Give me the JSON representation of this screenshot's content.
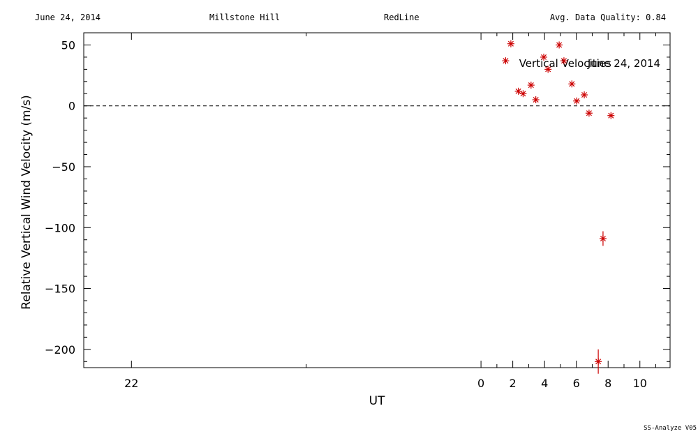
{
  "header": {
    "date": "June 24, 2014",
    "site": "Millstone Hill",
    "instrument": "RedLine",
    "quality": "Avg. Data Quality: 0.84"
  },
  "footer": "SS-Analyze V05",
  "chart_data": {
    "type": "scatter",
    "title": "",
    "xlabel": "UT",
    "ylabel": "Relative Vertical Wind Velocity (m/s)",
    "xlim": [
      -25,
      11.9
    ],
    "ylim": [
      -215,
      60
    ],
    "x_ticks": [
      {
        "value": -22,
        "label": "22"
      },
      {
        "value": 0,
        "label": "0"
      },
      {
        "value": 2,
        "label": "2"
      },
      {
        "value": 4,
        "label": "4"
      },
      {
        "value": 6,
        "label": "6"
      },
      {
        "value": 8,
        "label": "8"
      },
      {
        "value": 10,
        "label": "10"
      }
    ],
    "y_ticks": [
      {
        "value": 50,
        "label": "50"
      },
      {
        "value": 0,
        "label": "0"
      },
      {
        "value": -50,
        "label": "−50"
      },
      {
        "value": -100,
        "label": "−100"
      },
      {
        "value": -150,
        "label": "−150"
      },
      {
        "value": -200,
        "label": "−200"
      }
    ],
    "reference_line": {
      "y": 0,
      "style": "dashed"
    },
    "annotations": [
      {
        "text": "Vertical Velocities",
        "x": 5.3,
        "y": 32
      },
      {
        "text": "June 24, 2014",
        "x": 9.0,
        "y": 32
      }
    ],
    "marker_color": "#cc0000",
    "points": [
      {
        "x": 1.55,
        "y": 37,
        "err": 0
      },
      {
        "x": 1.88,
        "y": 51,
        "err": 0
      },
      {
        "x": 2.35,
        "y": 12,
        "err": 0
      },
      {
        "x": 2.65,
        "y": 10,
        "err": 0
      },
      {
        "x": 3.15,
        "y": 17,
        "err": 0
      },
      {
        "x": 3.45,
        "y": 5,
        "err": 0
      },
      {
        "x": 3.95,
        "y": 40,
        "err": 0
      },
      {
        "x": 4.22,
        "y": 30,
        "err": 0
      },
      {
        "x": 4.92,
        "y": 50,
        "err": 0
      },
      {
        "x": 5.22,
        "y": 37,
        "err": 0
      },
      {
        "x": 5.72,
        "y": 18,
        "err": 0
      },
      {
        "x": 6.02,
        "y": 4,
        "err": 0
      },
      {
        "x": 6.5,
        "y": 9,
        "err": 0
      },
      {
        "x": 6.8,
        "y": -6,
        "err": 0
      },
      {
        "x": 7.38,
        "y": -210,
        "err": 10
      },
      {
        "x": 7.68,
        "y": -109,
        "err": 6
      },
      {
        "x": 8.18,
        "y": -8,
        "err": 0
      }
    ]
  }
}
